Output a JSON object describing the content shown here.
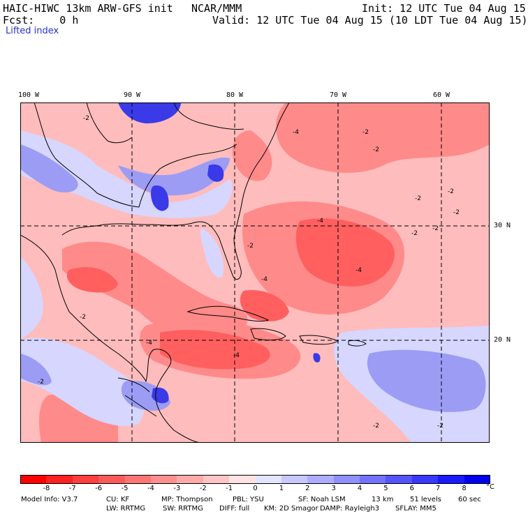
{
  "header": {
    "model": "HAIC-HIWC 13km ARW-GFS init",
    "org": "NCAR/MMM",
    "init": "Init: 12 UTC Tue 04 Aug 15",
    "fcst": "Fcst:    0 h",
    "valid": "Valid: 12 UTC Tue 04 Aug 15 (10 LDT Tue 04 Aug 15)",
    "field": "Lifted index"
  },
  "axes": {
    "lon_labels": [
      "100 W",
      "90 W",
      "80 W",
      "70 W",
      "60 W"
    ],
    "lat_labels": [
      "30 N",
      "20 N"
    ]
  },
  "map": {
    "contour_labels": [
      "-2",
      "-4",
      "-2",
      "-2",
      "-2",
      "-2",
      "-2",
      "-4",
      "-4",
      "-2",
      "-4",
      "-2",
      "-2",
      "-4",
      "-2",
      "-2",
      "-2",
      "-4",
      "-2"
    ],
    "colors": {
      "neg_strong": "#ff3b3b",
      "neg_mid": "#ff7878",
      "neg_light": "#ffb4b4",
      "neutral": "#ffffff",
      "pos_light": "#d2d2ff",
      "pos_mid": "#8c8cf0",
      "pos_strong": "#2828e6",
      "coast": "#000000",
      "grid": "#000000"
    }
  },
  "colorbar": {
    "labels": [
      "-8",
      "-7",
      "-6",
      "-5",
      "-4",
      "-3",
      "-2",
      "-1",
      "0",
      "1",
      "2",
      "3",
      "4",
      "5",
      "6",
      "7",
      "8"
    ],
    "unit": "°C",
    "colors": [
      "#ff0000",
      "#ff2020",
      "#ff3e3e",
      "#ff5a5a",
      "#ff7575",
      "#ff8f8f",
      "#ffa9a9",
      "#ffc4c4",
      "#ffe2e2",
      "#e4e4ff",
      "#c8c8ff",
      "#adadff",
      "#9090ff",
      "#7272ff",
      "#5555ff",
      "#3838ff",
      "#1a1aff",
      "#0000ee"
    ]
  },
  "footer": {
    "line1": [
      "Model Info: V3.7",
      "CU: KF",
      "MP: Thompson",
      "PBL: YSU",
      "SF: Noah LSM",
      "13 km",
      "51 levels",
      "60 sec"
    ],
    "line2": [
      "LW: RRTMG",
      "SW: RRTMG",
      "DIFF: full",
      "KM: 2D Smagor",
      "DAMP: Rayleigh3",
      "SFLAY: MM5"
    ]
  }
}
